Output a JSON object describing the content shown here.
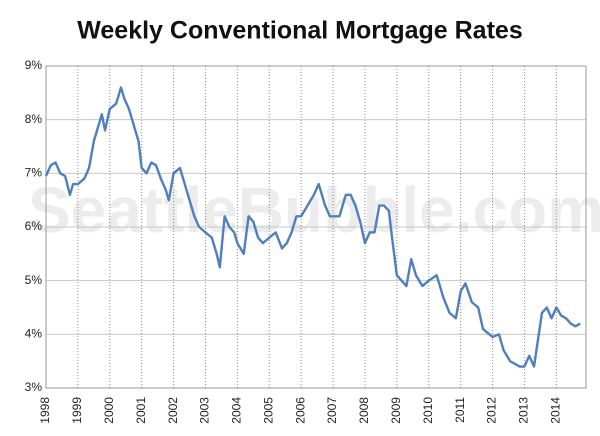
{
  "chart_data": {
    "type": "line",
    "title": "Weekly Conventional Mortgage Rates",
    "watermark": "SeattleBubble.com",
    "x": [
      1998.0,
      1998.15,
      1998.3,
      1998.45,
      1998.6,
      1998.75,
      1998.85,
      1999.0,
      1999.2,
      1999.35,
      1999.5,
      1999.65,
      1999.75,
      1999.85,
      2000.0,
      2000.2,
      2000.35,
      2000.45,
      2000.6,
      2000.75,
      2000.9,
      2001.0,
      2001.15,
      2001.3,
      2001.45,
      2001.6,
      2001.75,
      2001.85,
      2002.0,
      2002.2,
      2002.35,
      2002.5,
      2002.65,
      2002.8,
      2003.0,
      2003.2,
      2003.35,
      2003.45,
      2003.6,
      2003.75,
      2003.9,
      2004.0,
      2004.2,
      2004.35,
      2004.5,
      2004.65,
      2004.8,
      2005.0,
      2005.2,
      2005.4,
      2005.55,
      2005.7,
      2005.85,
      2006.0,
      2006.2,
      2006.4,
      2006.55,
      2006.75,
      2006.9,
      2007.0,
      2007.2,
      2007.4,
      2007.55,
      2007.7,
      2007.85,
      2008.0,
      2008.15,
      2008.3,
      2008.45,
      2008.6,
      2008.75,
      2008.85,
      2009.0,
      2009.15,
      2009.3,
      2009.45,
      2009.6,
      2009.8,
      2010.0,
      2010.25,
      2010.45,
      2010.65,
      2010.85,
      2011.0,
      2011.15,
      2011.35,
      2011.55,
      2011.7,
      2011.9,
      2012.0,
      2012.2,
      2012.35,
      2012.55,
      2012.7,
      2012.85,
      2013.0,
      2013.15,
      2013.3,
      2013.45,
      2013.55,
      2013.7,
      2013.85,
      2014.0,
      2014.15,
      2014.3,
      2014.45,
      2014.6,
      2014.75
    ],
    "series": [
      {
        "name": "Weekly Conventional Mortgage Rates",
        "color": "#4f7fbd",
        "values": [
          6.95,
          7.15,
          7.2,
          7.0,
          6.95,
          6.6,
          6.8,
          6.8,
          6.9,
          7.1,
          7.6,
          7.9,
          8.1,
          7.8,
          8.2,
          8.3,
          8.6,
          8.4,
          8.2,
          7.9,
          7.6,
          7.1,
          7.0,
          7.2,
          7.15,
          6.9,
          6.7,
          6.5,
          7.0,
          7.1,
          6.8,
          6.5,
          6.2,
          6.0,
          5.9,
          5.8,
          5.5,
          5.25,
          6.2,
          6.0,
          5.9,
          5.7,
          5.5,
          6.2,
          6.1,
          5.8,
          5.7,
          5.8,
          5.9,
          5.6,
          5.7,
          5.9,
          6.2,
          6.2,
          6.4,
          6.6,
          6.8,
          6.4,
          6.2,
          6.2,
          6.2,
          6.6,
          6.6,
          6.4,
          6.1,
          5.7,
          5.9,
          5.9,
          6.4,
          6.4,
          6.3,
          5.8,
          5.1,
          5.0,
          4.9,
          5.4,
          5.1,
          4.9,
          5.0,
          5.1,
          4.7,
          4.4,
          4.3,
          4.8,
          4.95,
          4.6,
          4.5,
          4.1,
          4.0,
          3.95,
          4.0,
          3.7,
          3.5,
          3.45,
          3.4,
          3.4,
          3.6,
          3.4,
          4.0,
          4.4,
          4.5,
          4.3,
          4.5,
          4.35,
          4.3,
          4.2,
          4.15,
          4.2
        ]
      }
    ],
    "xlim": [
      1998,
      2014.93
    ],
    "xticks": [
      1998,
      1999,
      2000,
      2001,
      2002,
      2003,
      2004,
      2005,
      2006,
      2007,
      2008,
      2009,
      2010,
      2011,
      2012,
      2013,
      2014
    ],
    "ylim": [
      3,
      9
    ],
    "yticks": [
      {
        "value": 3,
        "label": "3%"
      },
      {
        "value": 4,
        "label": "4%"
      },
      {
        "value": 5,
        "label": "5%"
      },
      {
        "value": 6,
        "label": "6%"
      },
      {
        "value": 7,
        "label": "7%"
      },
      {
        "value": 8,
        "label": "8%"
      },
      {
        "value": 9,
        "label": "9%"
      }
    ],
    "grid": true
  }
}
